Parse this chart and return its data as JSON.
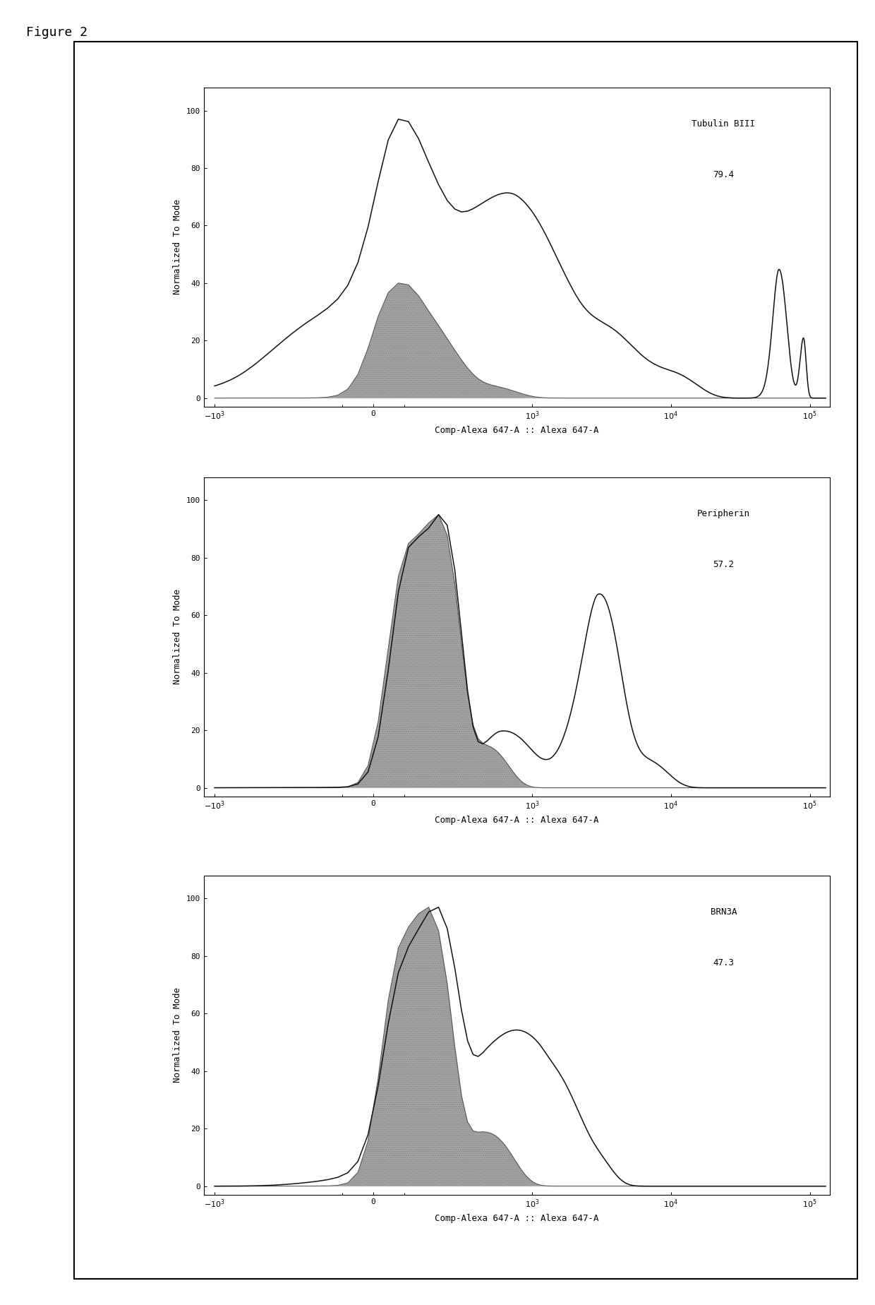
{
  "figure_title": "Figure 2",
  "xlabel": "Comp-Alexa 647-A :: Alexa 647-A",
  "ylabel": "Normalized To Mode",
  "fig_bg": "#ffffff",
  "outer_lw": 1.5,
  "plots": [
    {
      "label": "Tubulin BIII",
      "value": "79.4"
    },
    {
      "label": "Peripherin",
      "value": "57.2"
    },
    {
      "label": "BRN3A",
      "value": "47.3"
    }
  ],
  "ylim": [
    -3,
    108
  ],
  "yticks": [
    0,
    20,
    40,
    60,
    80,
    100
  ],
  "xticks": [
    -1000,
    0,
    1000,
    10000,
    100000
  ],
  "xlim_low": -1200,
  "xlim_high": 140000,
  "linthresh": 200,
  "linscale": 0.4,
  "control_fill_color": "#aaaaaa",
  "control_fill_alpha": 0.55,
  "control_line_color": "#555555",
  "sample_line_color": "#111111",
  "sample_lw": 1.1,
  "ctrl_lw": 0.8,
  "tick_fs": 8,
  "axis_fs": 9,
  "annot_fs": 9
}
